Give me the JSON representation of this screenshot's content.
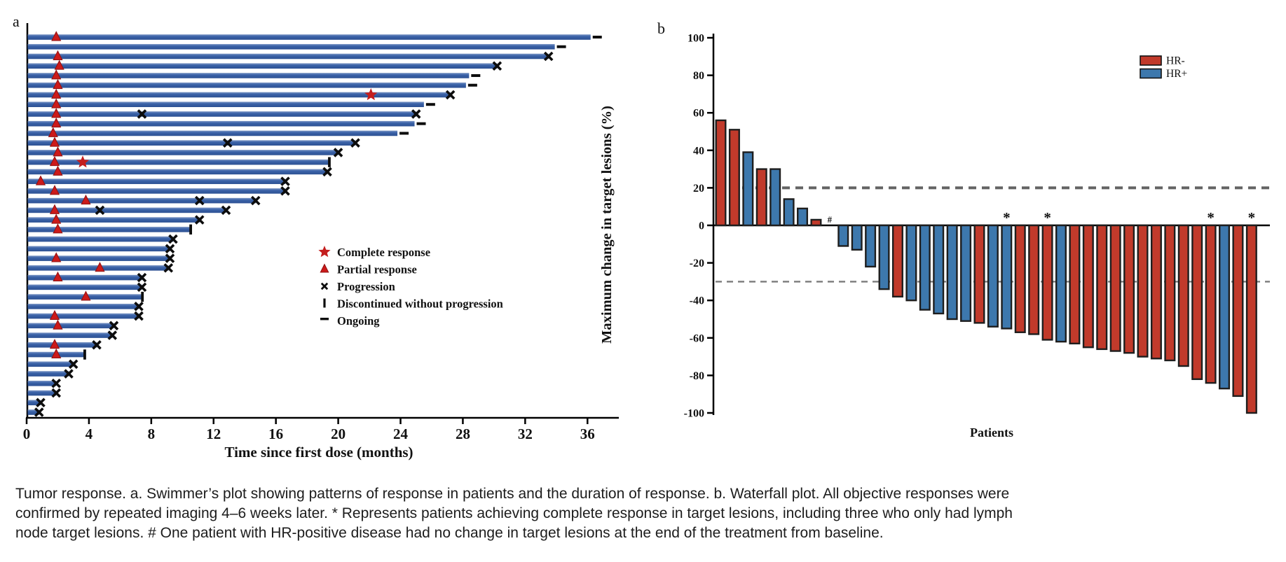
{
  "figure": {
    "panel_a_label": "a",
    "panel_b_label": "b"
  },
  "caption": {
    "lines": [
      "Tumor response. a. Swimmer’s plot showing patterns of response in patients and the duration of response. b. Waterfall plot. All objective responses were",
      "confirmed by repeated imaging 4–6 weeks later. * Represents patients achieving complete response in target lesions, including three who only had lymph",
      "node target lesions. # One patient with HR-positive disease had no change in target lesions at the end of the treatment from baseline."
    ]
  },
  "chart_data": [
    {
      "type": "bar",
      "subtype": "swimmer",
      "panel": "a",
      "xlabel": "Time since first dose (months)",
      "ylabel": "",
      "xlim": [
        0,
        38
      ],
      "x_ticks": [
        0,
        4,
        8,
        12,
        16,
        20,
        24,
        28,
        32,
        36
      ],
      "grid": false,
      "bar_color": "#3a62a8",
      "marker_colors": {
        "complete_response": "#c41e1e",
        "partial_response": "#cc1a1a",
        "progression": "#0d0d0d",
        "discontinued": "#0d0d0d",
        "ongoing": "#0d0d0d"
      },
      "legend_position": "center-right",
      "legend": [
        {
          "marker": "star-icon",
          "label": "Complete response"
        },
        {
          "marker": "triangle-icon",
          "label": "Partial response"
        },
        {
          "marker": "x-icon",
          "label": "Progression"
        },
        {
          "marker": "vbar-icon",
          "label": "Discontinued without progression"
        },
        {
          "marker": "dash-icon",
          "label": "Ongoing"
        }
      ],
      "patient_fields": "d = duration of treatment in months; pr = month of partial response; cr = month of complete response; x = months of interim progression marks; end = marker at bar end",
      "patients": [
        {
          "d": 36.2,
          "pr": 1.9,
          "cr": null,
          "x": [],
          "end": "ongoing"
        },
        {
          "d": 33.9,
          "pr": null,
          "cr": null,
          "x": [],
          "end": "ongoing"
        },
        {
          "d": 33.5,
          "pr": 2.0,
          "cr": null,
          "x": [],
          "end": "progression"
        },
        {
          "d": 30.2,
          "pr": 2.1,
          "cr": null,
          "x": [],
          "end": "progression"
        },
        {
          "d": 28.4,
          "pr": 1.9,
          "cr": null,
          "x": [],
          "end": "ongoing"
        },
        {
          "d": 28.2,
          "pr": 2.0,
          "cr": null,
          "x": [],
          "end": "ongoing"
        },
        {
          "d": 27.2,
          "pr": 1.9,
          "cr": 22.1,
          "x": [],
          "end": "progression"
        },
        {
          "d": 25.5,
          "pr": 1.9,
          "cr": null,
          "x": [],
          "end": "ongoing"
        },
        {
          "d": 25.0,
          "pr": 1.9,
          "cr": null,
          "x": [
            7.4
          ],
          "end": "progression"
        },
        {
          "d": 24.9,
          "pr": 1.9,
          "cr": null,
          "x": [],
          "end": "ongoing"
        },
        {
          "d": 23.8,
          "pr": 1.7,
          "cr": null,
          "x": [],
          "end": "ongoing"
        },
        {
          "d": 21.1,
          "pr": 1.8,
          "cr": null,
          "x": [
            12.9
          ],
          "end": "progression"
        },
        {
          "d": 20.0,
          "pr": 2.0,
          "cr": null,
          "x": [],
          "end": "progression"
        },
        {
          "d": 19.4,
          "pr": 1.8,
          "cr": 3.6,
          "x": [],
          "end": "discontinued"
        },
        {
          "d": 19.3,
          "pr": 2.0,
          "cr": null,
          "x": [],
          "end": "progression"
        },
        {
          "d": 16.6,
          "pr": 0.9,
          "cr": null,
          "x": [],
          "end": "progression"
        },
        {
          "d": 16.6,
          "pr": 1.8,
          "cr": null,
          "x": [],
          "end": "progression"
        },
        {
          "d": 14.7,
          "pr": 3.8,
          "cr": null,
          "x": [
            11.1
          ],
          "end": "progression"
        },
        {
          "d": 12.8,
          "pr": 1.8,
          "cr": null,
          "x": [
            4.7
          ],
          "end": "progression"
        },
        {
          "d": 11.1,
          "pr": 1.9,
          "cr": null,
          "x": [],
          "end": "progression"
        },
        {
          "d": 10.5,
          "pr": 2.0,
          "cr": null,
          "x": [],
          "end": "discontinued"
        },
        {
          "d": 9.4,
          "pr": null,
          "cr": null,
          "x": [],
          "end": "progression"
        },
        {
          "d": 9.2,
          "pr": null,
          "cr": null,
          "x": [],
          "end": "progression"
        },
        {
          "d": 9.2,
          "pr": 1.9,
          "cr": null,
          "x": [],
          "end": "progression"
        },
        {
          "d": 9.1,
          "pr": 4.7,
          "cr": null,
          "x": [],
          "end": "progression"
        },
        {
          "d": 7.4,
          "pr": 2.0,
          "cr": null,
          "x": [],
          "end": "progression"
        },
        {
          "d": 7.4,
          "pr": null,
          "cr": null,
          "x": [],
          "end": "progression"
        },
        {
          "d": 7.4,
          "pr": 3.8,
          "cr": null,
          "x": [],
          "end": "discontinued"
        },
        {
          "d": 7.2,
          "pr": null,
          "cr": null,
          "x": [],
          "end": "progression"
        },
        {
          "d": 7.2,
          "pr": 1.8,
          "cr": null,
          "x": [],
          "end": "progression"
        },
        {
          "d": 5.6,
          "pr": 2.0,
          "cr": null,
          "x": [],
          "end": "progression"
        },
        {
          "d": 5.5,
          "pr": null,
          "cr": null,
          "x": [],
          "end": "progression"
        },
        {
          "d": 4.5,
          "pr": 1.8,
          "cr": null,
          "x": [],
          "end": "progression"
        },
        {
          "d": 3.7,
          "pr": 1.9,
          "cr": null,
          "x": [],
          "end": "discontinued"
        },
        {
          "d": 3.0,
          "pr": null,
          "cr": null,
          "x": [],
          "end": "progression"
        },
        {
          "d": 2.7,
          "pr": null,
          "cr": null,
          "x": [],
          "end": "progression"
        },
        {
          "d": 1.9,
          "pr": null,
          "cr": null,
          "x": [],
          "end": "progression"
        },
        {
          "d": 1.9,
          "pr": null,
          "cr": null,
          "x": [],
          "end": "progression"
        },
        {
          "d": 0.9,
          "pr": null,
          "cr": null,
          "x": [],
          "end": "progression"
        },
        {
          "d": 0.8,
          "pr": null,
          "cr": null,
          "x": [],
          "end": "progression"
        }
      ]
    },
    {
      "type": "bar",
      "subtype": "waterfall",
      "panel": "b",
      "xlabel": "Patients",
      "ylabel": "Maximum change in target lesions (%)",
      "ylim": [
        -100,
        100
      ],
      "y_ticks": [
        100,
        80,
        60,
        40,
        20,
        0,
        -20,
        -40,
        -60,
        -80,
        -100
      ],
      "reference_lines": [
        20,
        -30
      ],
      "grid": false,
      "legend_position": "top-right",
      "groups": {
        "HR-": "#c13a2b",
        "HR+": "#3d78ad"
      },
      "legend": [
        {
          "label": "HR-",
          "color": "#c13a2b"
        },
        {
          "label": "HR+",
          "color": "#3d78ad"
        }
      ],
      "marker_notes": "* = complete response in target lesions; # = no change from baseline",
      "values": [
        {
          "value": 56,
          "group": "HR-"
        },
        {
          "value": 51,
          "group": "HR-"
        },
        {
          "value": 39,
          "group": "HR+"
        },
        {
          "value": 30,
          "group": "HR-"
        },
        {
          "value": 30,
          "group": "HR+"
        },
        {
          "value": 14,
          "group": "HR+"
        },
        {
          "value": 9,
          "group": "HR+"
        },
        {
          "value": 3,
          "group": "HR-"
        },
        {
          "value": 0,
          "group": "HR+",
          "marker": "#"
        },
        {
          "value": -11,
          "group": "HR+"
        },
        {
          "value": -13,
          "group": "HR+"
        },
        {
          "value": -22,
          "group": "HR+"
        },
        {
          "value": -34,
          "group": "HR+"
        },
        {
          "value": -38,
          "group": "HR-"
        },
        {
          "value": -40,
          "group": "HR+"
        },
        {
          "value": -45,
          "group": "HR+"
        },
        {
          "value": -47,
          "group": "HR+"
        },
        {
          "value": -50,
          "group": "HR+"
        },
        {
          "value": -51,
          "group": "HR+"
        },
        {
          "value": -52,
          "group": "HR-"
        },
        {
          "value": -54,
          "group": "HR+"
        },
        {
          "value": -55,
          "group": "HR+",
          "marker": "*"
        },
        {
          "value": -57,
          "group": "HR-"
        },
        {
          "value": -58,
          "group": "HR-"
        },
        {
          "value": -61,
          "group": "HR-",
          "marker": "*"
        },
        {
          "value": -62,
          "group": "HR+"
        },
        {
          "value": -63,
          "group": "HR-"
        },
        {
          "value": -65,
          "group": "HR-"
        },
        {
          "value": -66,
          "group": "HR-"
        },
        {
          "value": -67,
          "group": "HR-"
        },
        {
          "value": -68,
          "group": "HR-"
        },
        {
          "value": -70,
          "group": "HR-"
        },
        {
          "value": -71,
          "group": "HR-"
        },
        {
          "value": -72,
          "group": "HR-"
        },
        {
          "value": -75,
          "group": "HR-"
        },
        {
          "value": -82,
          "group": "HR-"
        },
        {
          "value": -84,
          "group": "HR-",
          "marker": "*"
        },
        {
          "value": -87,
          "group": "HR+"
        },
        {
          "value": -91,
          "group": "HR-"
        },
        {
          "value": -100,
          "group": "HR-",
          "marker": "*"
        }
      ]
    }
  ]
}
